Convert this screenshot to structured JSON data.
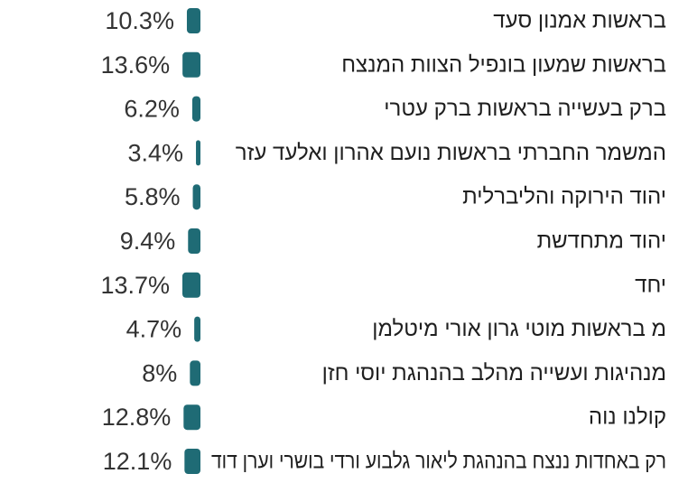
{
  "chart_data": {
    "type": "bar",
    "orientation": "horizontal",
    "direction": "rtl",
    "bar_color": "#1f6b75",
    "value_suffix": "%",
    "xlim": [
      0,
      13.7
    ],
    "categories": [
      "בראשות אמנון סעד",
      "בראשות שמעון בונפיל הצוות המנצח",
      "ברק בעשייה בראשות ברק עטרי",
      "המשמר החברתי בראשות נועם אהרון ואלעד עזר",
      "יהוד הירוקה והליברלית",
      "יהוד מתחדשת",
      "יחד",
      "מ בראשות מוטי גרון אורי מיטלמן",
      "מנהיגות ועשייה מהלב בהנהגת יוסי חזן",
      "קולנו נוה",
      "רק באחדות ננצח בהנהגת ליאור גלבוע ורדי בושרי וערן דוד"
    ],
    "values": [
      10.3,
      13.6,
      6.2,
      3.4,
      5.8,
      9.4,
      13.7,
      4.7,
      8,
      12.8,
      12.1
    ],
    "value_labels": [
      "10.3%",
      "13.6%",
      "6.2%",
      "3.4%",
      "5.8%",
      "9.4%",
      "13.7%",
      "4.7%",
      "8%",
      "12.8%",
      "12.1%"
    ]
  }
}
